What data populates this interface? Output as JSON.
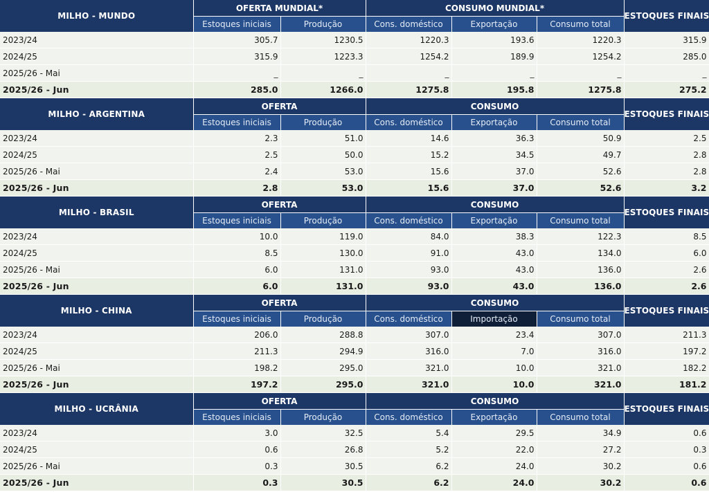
{
  "blocks": [
    {
      "title": "MILHO - MUNDO",
      "group_supply": "OFERTA MUNDIAL*",
      "group_consumption": "CONSUMO MUNDIAL*",
      "final_label": "ESTOQUES FINAIS*",
      "subheaders": [
        "Estoques iniciais",
        "Produção",
        "Cons. doméstico",
        "Exportação",
        "Consumo total"
      ],
      "highlight_sub": -1,
      "rows": [
        {
          "label": "2023/24",
          "values": [
            "305.7",
            "1230.5",
            "1220.3",
            "193.6",
            "1220.3",
            "315.9"
          ],
          "bold": false
        },
        {
          "label": "2024/25",
          "values": [
            "315.9",
            "1223.3",
            "1254.2",
            "189.9",
            "1254.2",
            "285.0"
          ],
          "bold": false
        },
        {
          "label": "2025/26 - Mai",
          "values": [
            "_",
            "_",
            "_",
            "_",
            "_",
            "_"
          ],
          "bold": false
        },
        {
          "label": "2025/26 - Jun",
          "values": [
            "285.0",
            "1266.0",
            "1275.8",
            "195.8",
            "1275.8",
            "275.2"
          ],
          "bold": true
        }
      ]
    },
    {
      "title": "MILHO - ARGENTINA",
      "group_supply": "OFERTA",
      "group_consumption": "CONSUMO",
      "final_label": "ESTOQUES FINAIS*",
      "subheaders": [
        "Estoques iniciais",
        "Produção",
        "Cons. doméstico",
        "Exportação",
        "Consumo total"
      ],
      "highlight_sub": -1,
      "rows": [
        {
          "label": "2023/24",
          "values": [
            "2.3",
            "51.0",
            "14.6",
            "36.3",
            "50.9",
            "2.5"
          ],
          "bold": false
        },
        {
          "label": "2024/25",
          "values": [
            "2.5",
            "50.0",
            "15.2",
            "34.5",
            "49.7",
            "2.8"
          ],
          "bold": false
        },
        {
          "label": "2025/26 - Mai",
          "values": [
            "2.4",
            "53.0",
            "15.6",
            "37.0",
            "52.6",
            "2.8"
          ],
          "bold": false
        },
        {
          "label": "2025/26 - Jun",
          "values": [
            "2.8",
            "53.0",
            "15.6",
            "37.0",
            "52.6",
            "3.2"
          ],
          "bold": true
        }
      ]
    },
    {
      "title": "MILHO - BRASIL",
      "group_supply": "OFERTA",
      "group_consumption": "CONSUMO",
      "final_label": "ESTOQUES FINAIS*",
      "subheaders": [
        "Estoques iniciais",
        "Produção",
        "Cons. doméstico",
        "Exportação",
        "Consumo total"
      ],
      "highlight_sub": -1,
      "rows": [
        {
          "label": "2023/24",
          "values": [
            "10.0",
            "119.0",
            "84.0",
            "38.3",
            "122.3",
            "8.5"
          ],
          "bold": false
        },
        {
          "label": "2024/25",
          "values": [
            "8.5",
            "130.0",
            "91.0",
            "43.0",
            "134.0",
            "6.0"
          ],
          "bold": false
        },
        {
          "label": "2025/26 - Mai",
          "values": [
            "6.0",
            "131.0",
            "93.0",
            "43.0",
            "136.0",
            "2.6"
          ],
          "bold": false
        },
        {
          "label": "2025/26 - Jun",
          "values": [
            "6.0",
            "131.0",
            "93.0",
            "43.0",
            "136.0",
            "2.6"
          ],
          "bold": true
        }
      ]
    },
    {
      "title": "MILHO - CHINA",
      "group_supply": "OFERTA",
      "group_consumption": "CONSUMO",
      "final_label": "ESTOQUES FINAIS*",
      "subheaders": [
        "Estoques iniciais",
        "Produção",
        "Cons. doméstico",
        "Importação",
        "Consumo total"
      ],
      "highlight_sub": 3,
      "rows": [
        {
          "label": "2023/24",
          "values": [
            "206.0",
            "288.8",
            "307.0",
            "23.4",
            "307.0",
            "211.3"
          ],
          "bold": false
        },
        {
          "label": "2024/25",
          "values": [
            "211.3",
            "294.9",
            "316.0",
            "7.0",
            "316.0",
            "197.2"
          ],
          "bold": false
        },
        {
          "label": "2025/26 - Mai",
          "values": [
            "198.2",
            "295.0",
            "321.0",
            "10.0",
            "321.0",
            "182.2"
          ],
          "bold": false
        },
        {
          "label": "2025/26 - Jun",
          "values": [
            "197.2",
            "295.0",
            "321.0",
            "10.0",
            "321.0",
            "181.2"
          ],
          "bold": true
        }
      ]
    },
    {
      "title": "MILHO - UCRÂNIA",
      "group_supply": "OFERTA",
      "group_consumption": "CONSUMO",
      "final_label": "ESTOQUES FINAIS*",
      "subheaders": [
        "Estoques iniciais",
        "Produção",
        "Cons. doméstico",
        "Exportação",
        "Consumo total"
      ],
      "highlight_sub": -1,
      "rows": [
        {
          "label": "2023/24",
          "values": [
            "3.0",
            "32.5",
            "5.4",
            "29.5",
            "34.9",
            "0.6"
          ],
          "bold": false
        },
        {
          "label": "2024/25",
          "values": [
            "0.6",
            "26.8",
            "5.2",
            "22.0",
            "27.2",
            "0.3"
          ],
          "bold": false
        },
        {
          "label": "2025/26 - Mai",
          "values": [
            "0.3",
            "30.5",
            "6.2",
            "24.0",
            "30.2",
            "0.6"
          ],
          "bold": false
        },
        {
          "label": "2025/26 - Jun",
          "values": [
            "0.3",
            "30.5",
            "6.2",
            "24.0",
            "30.2",
            "0.6"
          ],
          "bold": true
        }
      ]
    }
  ]
}
